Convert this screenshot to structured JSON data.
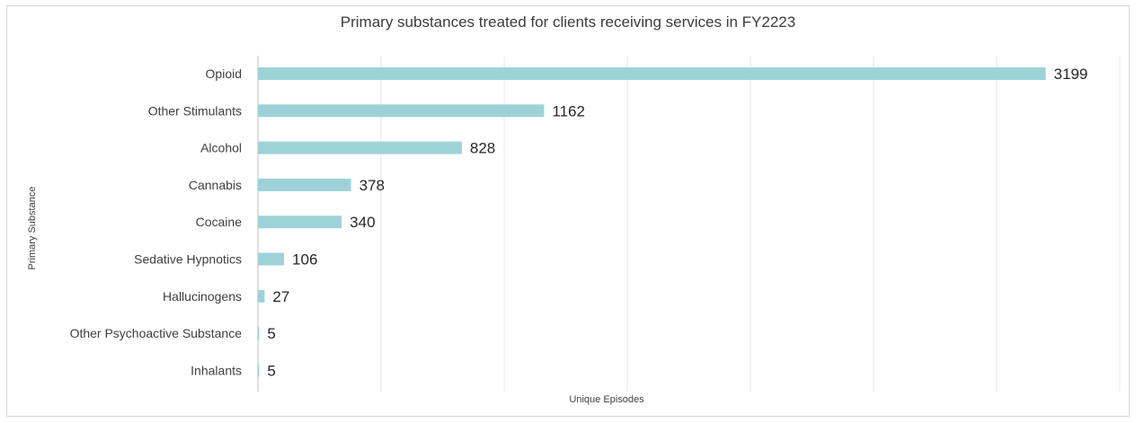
{
  "chart_data": {
    "type": "bar",
    "orientation": "horizontal",
    "title": "Primary substances treated for clients receiving services in FY2223",
    "xlabel": "Unique Episodes",
    "ylabel": "Primary Substance",
    "categories": [
      "Opioid",
      "Other Stimulants",
      "Alcohol",
      "Cannabis",
      "Cocaine",
      "Sedative Hypnotics",
      "Hallucinogens",
      "Other Psychoactive Substance",
      "Inhalants"
    ],
    "values": [
      3199,
      1162,
      828,
      378,
      340,
      106,
      27,
      5,
      5
    ],
    "xlim": [
      0,
      3500
    ],
    "grid": "vertical",
    "data_labels": true,
    "colors": {
      "bar": "#9dd3d8",
      "grid": "#e6e6e6",
      "axis": "#bfbfbf"
    }
  }
}
